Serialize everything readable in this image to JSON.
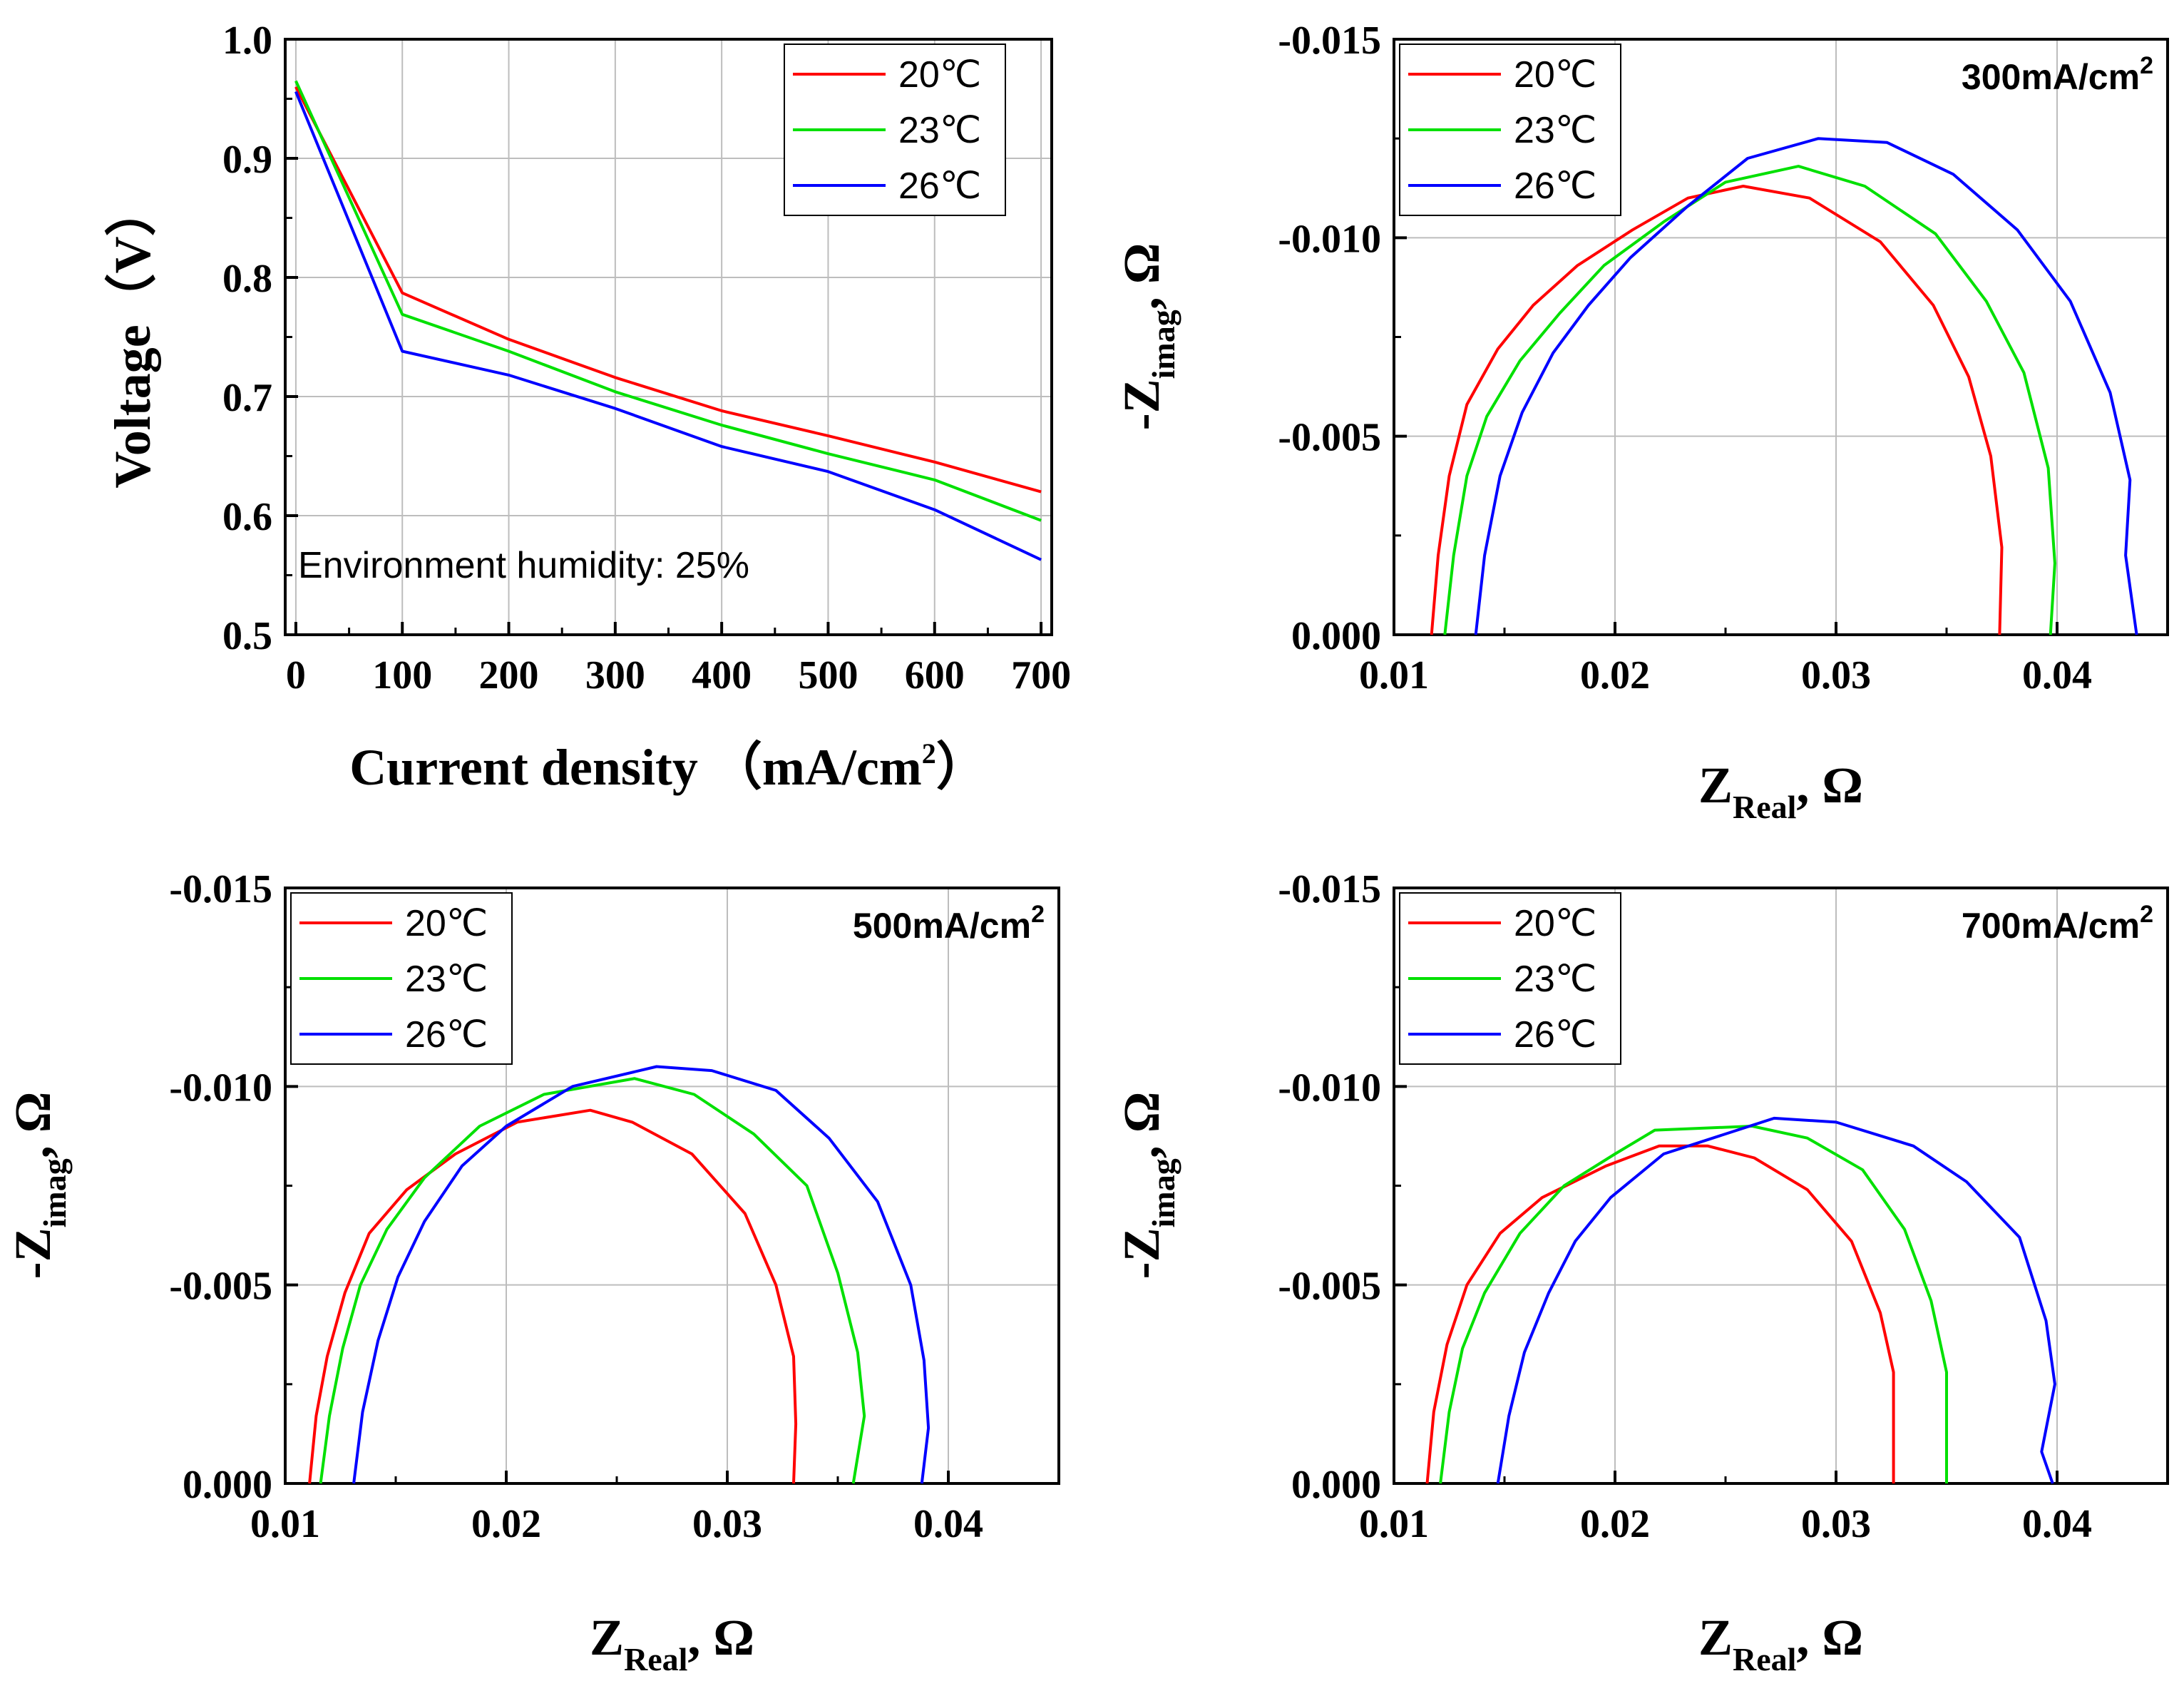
{
  "colors": {
    "t20": "#ff0000",
    "t23": "#00e000",
    "t26": "#0000ff"
  },
  "chart_data": [
    {
      "type": "line",
      "xlabel": "Current density",
      "xlabel_unit": "（mA/cm",
      "xlabel_unit_sup": "2",
      "xlabel_unit_close": "）",
      "ylabel": "Voltage（V）",
      "xlim": [
        -10,
        710
      ],
      "ylim": [
        0.5,
        1.0
      ],
      "xticks": [
        0,
        100,
        200,
        300,
        400,
        500,
        600,
        700
      ],
      "xtick_labels": [
        "0",
        "100",
        "200",
        "300",
        "400",
        "500",
        "600",
        "700"
      ],
      "yticks": [
        0.5,
        0.6,
        0.7,
        0.8,
        0.9,
        1.0
      ],
      "ytick_labels": [
        "0.5",
        "0.6",
        "0.7",
        "0.8",
        "0.9",
        "1.0"
      ],
      "annotation": "Environment humidity: 25%",
      "legend_position": "top-right",
      "series": [
        {
          "name": "20℃",
          "color_key": "t20",
          "points": [
            [
              0,
              0.96
            ],
            [
              100,
              0.787
            ],
            [
              200,
              0.748
            ],
            [
              300,
              0.716
            ],
            [
              400,
              0.688
            ],
            [
              500,
              0.667
            ],
            [
              600,
              0.645
            ],
            [
              700,
              0.62
            ]
          ]
        },
        {
          "name": "23℃",
          "color_key": "t23",
          "points": [
            [
              0,
              0.965
            ],
            [
              100,
              0.769
            ],
            [
              200,
              0.738
            ],
            [
              300,
              0.704
            ],
            [
              400,
              0.676
            ],
            [
              500,
              0.652
            ],
            [
              600,
              0.63
            ],
            [
              700,
              0.596
            ]
          ]
        },
        {
          "name": "26℃",
          "color_key": "t26",
          "points": [
            [
              0,
              0.956
            ],
            [
              100,
              0.738
            ],
            [
              200,
              0.718
            ],
            [
              300,
              0.69
            ],
            [
              400,
              0.658
            ],
            [
              500,
              0.637
            ],
            [
              600,
              0.605
            ],
            [
              700,
              0.563
            ]
          ]
        }
      ]
    },
    {
      "type": "line",
      "xlabel": "Z",
      "xlabel_sub": "Real",
      "xlabel_tail": ", Ω",
      "ylabel": "-Z",
      "ylabel_sub": "imag",
      "ylabel_tail": ", Ω",
      "annotation": "300mA/cm",
      "annotation_sup": "2",
      "xlim": [
        0.01,
        0.045
      ],
      "ylim": [
        0,
        -0.015
      ],
      "xticks": [
        0.01,
        0.02,
        0.03,
        0.04
      ],
      "xtick_labels": [
        "0.01",
        "0.02",
        "0.03",
        "0.04"
      ],
      "yticks": [
        0,
        -0.005,
        -0.01,
        -0.015
      ],
      "ytick_labels": [
        "0.000",
        "-0.005",
        "-0.010",
        "-0.015"
      ],
      "legend_position": "top-left",
      "series": [
        {
          "name": "20℃",
          "color_key": "t20",
          "points": [
            [
              0.0117,
              0
            ],
            [
              0.012,
              -0.002
            ],
            [
              0.0125,
              -0.004
            ],
            [
              0.0133,
              -0.0058
            ],
            [
              0.0147,
              -0.0072
            ],
            [
              0.0163,
              -0.0083
            ],
            [
              0.0183,
              -0.0093
            ],
            [
              0.0208,
              -0.0102
            ],
            [
              0.0233,
              -0.011
            ],
            [
              0.0258,
              -0.0113
            ],
            [
              0.0288,
              -0.011
            ],
            [
              0.032,
              -0.0099
            ],
            [
              0.0344,
              -0.0083
            ],
            [
              0.036,
              -0.0065
            ],
            [
              0.037,
              -0.0045
            ],
            [
              0.0375,
              -0.0022
            ],
            [
              0.0374,
              0
            ]
          ]
        },
        {
          "name": "23℃",
          "color_key": "t23",
          "points": [
            [
              0.0123,
              0
            ],
            [
              0.0127,
              -0.002
            ],
            [
              0.0133,
              -0.004
            ],
            [
              0.0142,
              -0.0055
            ],
            [
              0.0157,
              -0.0069
            ],
            [
              0.0175,
              -0.0081
            ],
            [
              0.0195,
              -0.0093
            ],
            [
              0.0222,
              -0.0104
            ],
            [
              0.025,
              -0.0114
            ],
            [
              0.0283,
              -0.0118
            ],
            [
              0.0313,
              -0.0113
            ],
            [
              0.0345,
              -0.0101
            ],
            [
              0.0368,
              -0.0084
            ],
            [
              0.0385,
              -0.0066
            ],
            [
              0.0396,
              -0.0042
            ],
            [
              0.0399,
              -0.0018
            ],
            [
              0.0397,
              0
            ]
          ]
        },
        {
          "name": "26℃",
          "color_key": "t26",
          "points": [
            [
              0.0137,
              0
            ],
            [
              0.0141,
              -0.002
            ],
            [
              0.0148,
              -0.004
            ],
            [
              0.0158,
              -0.0056
            ],
            [
              0.0172,
              -0.0071
            ],
            [
              0.0188,
              -0.0083
            ],
            [
              0.0207,
              -0.0095
            ],
            [
              0.0233,
              -0.0108
            ],
            [
              0.026,
              -0.012
            ],
            [
              0.0292,
              -0.0125
            ],
            [
              0.0323,
              -0.0124
            ],
            [
              0.0353,
              -0.0116
            ],
            [
              0.0382,
              -0.0102
            ],
            [
              0.0406,
              -0.0084
            ],
            [
              0.0424,
              -0.0061
            ],
            [
              0.0433,
              -0.0039
            ],
            [
              0.0431,
              -0.002
            ],
            [
              0.0436,
              0
            ]
          ]
        }
      ]
    },
    {
      "type": "line",
      "xlabel": "Z",
      "xlabel_sub": "Real",
      "xlabel_tail": ", Ω",
      "ylabel": "-Z",
      "ylabel_sub": "imag",
      "ylabel_tail": ", Ω",
      "annotation": "500mA/cm",
      "annotation_sup": "2",
      "xlim": [
        0.01,
        0.045
      ],
      "ylim": [
        0,
        -0.015
      ],
      "xticks": [
        0.01,
        0.02,
        0.03,
        0.04
      ],
      "xtick_labels": [
        "0.01",
        "0.02",
        "0.03",
        "0.04"
      ],
      "yticks": [
        0,
        -0.005,
        -0.01,
        -0.015
      ],
      "ytick_labels": [
        "0.000",
        "-0.005",
        "-0.010",
        "-0.015"
      ],
      "legend_position": "top-left",
      "series": [
        {
          "name": "20℃",
          "color_key": "t20",
          "points": [
            [
              0.0111,
              0
            ],
            [
              0.0114,
              -0.0017
            ],
            [
              0.0119,
              -0.0032
            ],
            [
              0.0127,
              -0.0048
            ],
            [
              0.0138,
              -0.0063
            ],
            [
              0.0155,
              -0.0074
            ],
            [
              0.0177,
              -0.0083
            ],
            [
              0.0205,
              -0.0091
            ],
            [
              0.0238,
              -0.0094
            ],
            [
              0.0257,
              -0.0091
            ],
            [
              0.0284,
              -0.0083
            ],
            [
              0.0308,
              -0.0068
            ],
            [
              0.0322,
              -0.005
            ],
            [
              0.033,
              -0.0032
            ],
            [
              0.0331,
              -0.0015
            ],
            [
              0.033,
              0
            ]
          ]
        },
        {
          "name": "23℃",
          "color_key": "t23",
          "points": [
            [
              0.0116,
              0
            ],
            [
              0.012,
              -0.0017
            ],
            [
              0.0126,
              -0.0034
            ],
            [
              0.0134,
              -0.005
            ],
            [
              0.0146,
              -0.0064
            ],
            [
              0.0163,
              -0.0077
            ],
            [
              0.0188,
              -0.009
            ],
            [
              0.0217,
              -0.0098
            ],
            [
              0.0258,
              -0.0102
            ],
            [
              0.0285,
              -0.0098
            ],
            [
              0.0312,
              -0.0088
            ],
            [
              0.0336,
              -0.0075
            ],
            [
              0.035,
              -0.0053
            ],
            [
              0.0359,
              -0.0033
            ],
            [
              0.0362,
              -0.0017
            ],
            [
              0.0357,
              0
            ]
          ]
        },
        {
          "name": "26℃",
          "color_key": "t26",
          "points": [
            [
              0.0131,
              0
            ],
            [
              0.0135,
              -0.0018
            ],
            [
              0.0142,
              -0.0036
            ],
            [
              0.0151,
              -0.0052
            ],
            [
              0.0163,
              -0.0066
            ],
            [
              0.018,
              -0.008
            ],
            [
              0.02,
              -0.009
            ],
            [
              0.023,
              -0.01
            ],
            [
              0.0268,
              -0.0105
            ],
            [
              0.0293,
              -0.0104
            ],
            [
              0.0322,
              -0.0099
            ],
            [
              0.0346,
              -0.0087
            ],
            [
              0.0368,
              -0.0071
            ],
            [
              0.0383,
              -0.005
            ],
            [
              0.0389,
              -0.0031
            ],
            [
              0.0391,
              -0.0014
            ],
            [
              0.0388,
              0
            ]
          ]
        }
      ]
    },
    {
      "type": "line",
      "xlabel": "Z",
      "xlabel_sub": "Real",
      "xlabel_tail": ", Ω",
      "ylabel": "-Z",
      "ylabel_sub": "imag",
      "ylabel_tail": ", Ω",
      "annotation": "700mA/cm",
      "annotation_sup": "2",
      "xlim": [
        0.01,
        0.045
      ],
      "ylim": [
        0,
        -0.015
      ],
      "xticks": [
        0.01,
        0.02,
        0.03,
        0.04
      ],
      "xtick_labels": [
        "0.01",
        "0.02",
        "0.03",
        "0.04"
      ],
      "yticks": [
        0,
        -0.005,
        -0.01,
        -0.015
      ],
      "ytick_labels": [
        "0.000",
        "-0.005",
        "-0.010",
        "-0.015"
      ],
      "legend_position": "top-left",
      "series": [
        {
          "name": "20℃",
          "color_key": "t20",
          "points": [
            [
              0.0115,
              0
            ],
            [
              0.0118,
              -0.0018
            ],
            [
              0.0124,
              -0.0035
            ],
            [
              0.0133,
              -0.005
            ],
            [
              0.0148,
              -0.0063
            ],
            [
              0.0167,
              -0.0072
            ],
            [
              0.0196,
              -0.008
            ],
            [
              0.022,
              -0.0085
            ],
            [
              0.0242,
              -0.0085
            ],
            [
              0.0263,
              -0.0082
            ],
            [
              0.0287,
              -0.0074
            ],
            [
              0.0307,
              -0.0061
            ],
            [
              0.032,
              -0.0043
            ],
            [
              0.0326,
              -0.0028
            ],
            [
              0.0326,
              -0.0012
            ],
            [
              0.0326,
              0
            ]
          ]
        },
        {
          "name": "23℃",
          "color_key": "t23",
          "points": [
            [
              0.0121,
              0
            ],
            [
              0.0125,
              -0.0018
            ],
            [
              0.0131,
              -0.0034
            ],
            [
              0.0141,
              -0.0048
            ],
            [
              0.0157,
              -0.0063
            ],
            [
              0.0177,
              -0.0075
            ],
            [
              0.02,
              -0.0083
            ],
            [
              0.0218,
              -0.0089
            ],
            [
              0.0262,
              -0.009
            ],
            [
              0.0287,
              -0.0087
            ],
            [
              0.0312,
              -0.0079
            ],
            [
              0.0331,
              -0.0064
            ],
            [
              0.0343,
              -0.0046
            ],
            [
              0.035,
              -0.0028
            ],
            [
              0.035,
              -0.0012
            ],
            [
              0.035,
              0
            ]
          ]
        },
        {
          "name": "26℃",
          "color_key": "t26",
          "points": [
            [
              0.0147,
              0
            ],
            [
              0.0152,
              -0.0017
            ],
            [
              0.0159,
              -0.0033
            ],
            [
              0.017,
              -0.0048
            ],
            [
              0.0182,
              -0.0061
            ],
            [
              0.0198,
              -0.0072
            ],
            [
              0.0222,
              -0.0083
            ],
            [
              0.0272,
              -0.0092
            ],
            [
              0.03,
              -0.0091
            ],
            [
              0.0335,
              -0.0085
            ],
            [
              0.0359,
              -0.0076
            ],
            [
              0.0383,
              -0.0062
            ],
            [
              0.0395,
              -0.0041
            ],
            [
              0.0399,
              -0.0025
            ],
            [
              0.0393,
              -0.0008
            ],
            [
              0.0398,
              0
            ]
          ]
        }
      ]
    }
  ]
}
